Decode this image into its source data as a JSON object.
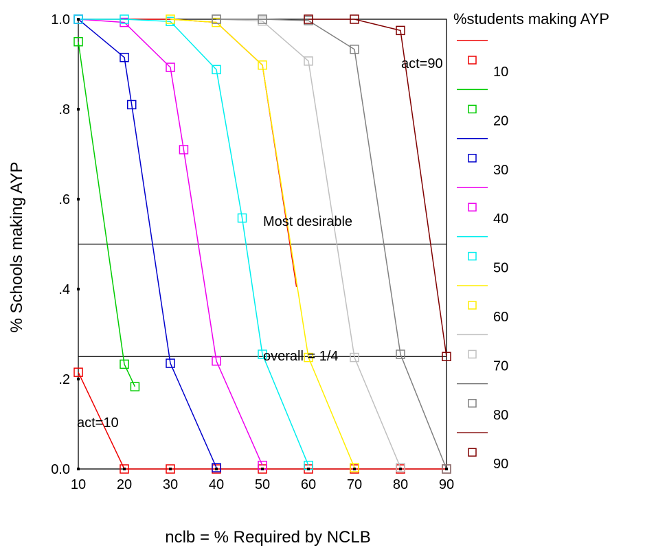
{
  "chart_data": {
    "type": "line",
    "xlabel": "nclb = % Required by NCLB",
    "ylabel": "% Schools making AYP",
    "x_ticks": [
      "10",
      "20",
      "30",
      "40",
      "50",
      "60",
      "70",
      "80",
      "90"
    ],
    "y_ticks": [
      "0.0",
      ".2",
      ".4",
      ".6",
      ".8",
      "1.0"
    ],
    "xlim": [
      10,
      90
    ],
    "ylim": [
      0,
      1
    ],
    "grid": false,
    "legend": {
      "title": "%students making AYP",
      "position": "right",
      "entries": [
        "10",
        "20",
        "30",
        "40",
        "50",
        "60",
        "70",
        "80",
        "90"
      ]
    },
    "reference_lines": [
      {
        "y": 0.5,
        "label": "Most desirable"
      },
      {
        "y": 0.25,
        "label": "overall = 1/4"
      }
    ],
    "annotations": [
      "act=10",
      "act=90"
    ],
    "series": [
      {
        "name": "10",
        "color": "#ee0000",
        "x": [
          10,
          20,
          30,
          40,
          50,
          60,
          70,
          80,
          90
        ],
        "y": [
          0.215,
          0.0,
          0.0,
          0.0,
          0.0,
          0.0,
          0.0,
          0.0,
          0.0
        ]
      },
      {
        "name": "20",
        "color": "#00cc00",
        "x": [
          10,
          20,
          22.3
        ],
        "y": [
          0.95,
          0.233,
          0.183
        ]
      },
      {
        "name": "30",
        "color": "#0000cc",
        "x": [
          10,
          20,
          21.6,
          30,
          40
        ],
        "y": [
          1.0,
          0.915,
          0.81,
          0.235,
          0.003
        ]
      },
      {
        "name": "40",
        "color": "#ee00ee",
        "x": [
          10,
          20,
          30,
          32.9,
          40,
          50
        ],
        "y": [
          1.0,
          0.993,
          0.893,
          0.71,
          0.24,
          0.008
        ]
      },
      {
        "name": "50",
        "color": "#00eeee",
        "x": [
          10,
          20,
          30,
          40,
          45.6,
          50,
          60
        ],
        "y": [
          1.0,
          1.0,
          0.995,
          0.888,
          0.558,
          0.255,
          0.008
        ]
      },
      {
        "name": "60",
        "color": "#ffee00",
        "x": [
          30,
          40,
          50,
          60,
          70
        ],
        "y": [
          1.0,
          0.993,
          0.898,
          0.248,
          0.003
        ]
      },
      {
        "name": "70",
        "color": "#c0c0c0",
        "x": [
          40,
          50,
          60,
          70,
          80
        ],
        "y": [
          1.0,
          0.996,
          0.907,
          0.248,
          0.003
        ]
      },
      {
        "name": "80",
        "color": "#808080",
        "x": [
          40,
          50,
          60,
          70,
          80,
          90
        ],
        "y": [
          1.0,
          1.0,
          0.997,
          0.933,
          0.255,
          0.0
        ]
      },
      {
        "name": "90",
        "color": "#800000",
        "x": [
          60,
          70,
          80,
          90
        ],
        "y": [
          1.0,
          1.0,
          0.975,
          0.25
        ]
      }
    ],
    "extra_lines": [
      {
        "series": "10",
        "color": "#ee0000",
        "x": [
          20,
          30,
          40,
          50,
          57.4
        ],
        "y": [
          1.0,
          1.0,
          0.993,
          0.898,
          0.405
        ]
      }
    ]
  }
}
